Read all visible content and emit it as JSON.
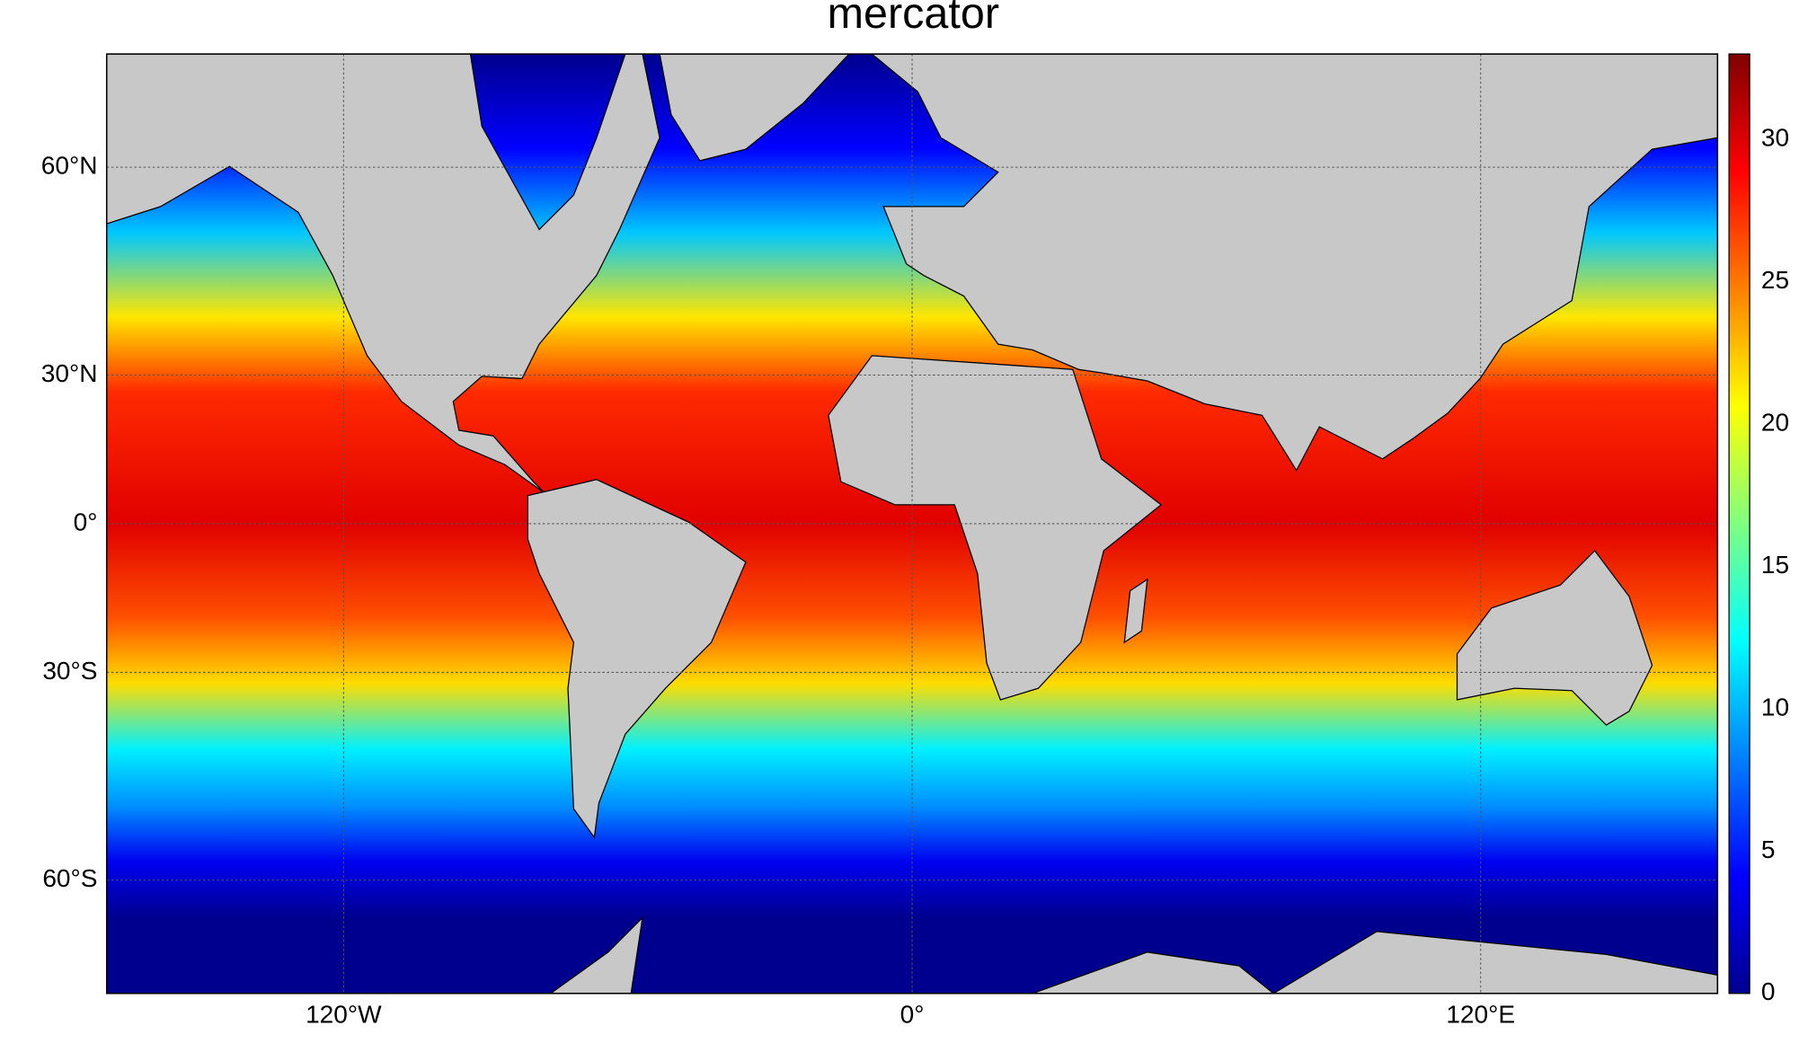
{
  "chart_data": {
    "type": "map",
    "title": "mercator",
    "xlim": [
      -170,
      170
    ],
    "xticks": [
      {
        "value": -120,
        "label": "120°W"
      },
      {
        "value": 0,
        "label": "0°"
      },
      {
        "value": 120,
        "label": "120°E"
      }
    ],
    "ylim": [
      -70,
      70
    ],
    "yticks": [
      {
        "value": -60,
        "label": "60°S"
      },
      {
        "value": -30,
        "label": "30°S"
      },
      {
        "value": 0,
        "label": "0°"
      },
      {
        "value": 30,
        "label": "30°N"
      },
      {
        "value": 60,
        "label": "60°N"
      }
    ],
    "grid": true,
    "colorbar": {
      "lim": [
        0,
        33
      ],
      "ticks": [
        0,
        5,
        10,
        15,
        20,
        25,
        30
      ]
    }
  }
}
